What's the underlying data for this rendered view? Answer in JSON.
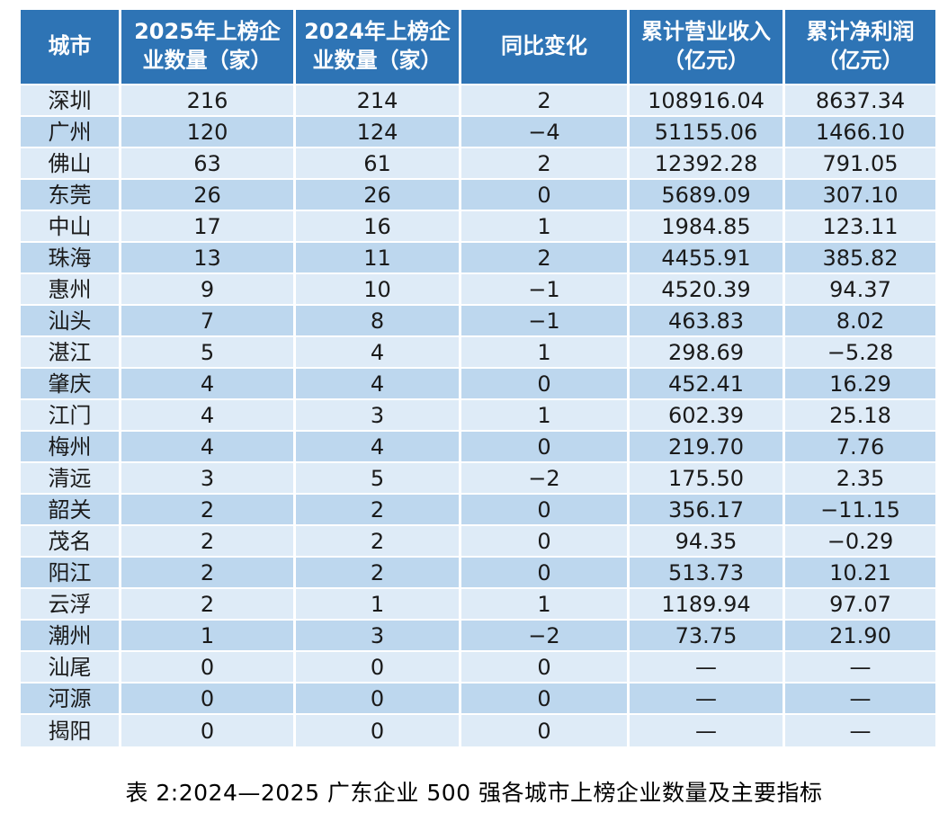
{
  "table": {
    "columns": [
      {
        "label": "城市"
      },
      {
        "label": "2025年上榜企\n业数量（家）"
      },
      {
        "label": "2024年上榜企\n业数量（家）"
      },
      {
        "label": "同比变化"
      },
      {
        "label": "累计营业收入\n（亿元）"
      },
      {
        "label": "累计净利润\n（亿元）"
      }
    ],
    "rows": [
      {
        "cells": [
          "深圳",
          "216",
          "214",
          "2",
          "108916.04",
          "8637.34"
        ]
      },
      {
        "cells": [
          "广州",
          "120",
          "124",
          "−4",
          "51155.06",
          "1466.10"
        ]
      },
      {
        "cells": [
          "佛山",
          "63",
          "61",
          "2",
          "12392.28",
          "791.05"
        ]
      },
      {
        "cells": [
          "东莞",
          "26",
          "26",
          "0",
          "5689.09",
          "307.10"
        ]
      },
      {
        "cells": [
          "中山",
          "17",
          "16",
          "1",
          "1984.85",
          "123.11"
        ]
      },
      {
        "cells": [
          "珠海",
          "13",
          "11",
          "2",
          "4455.91",
          "385.82"
        ]
      },
      {
        "cells": [
          "惠州",
          "9",
          "10",
          "−1",
          "4520.39",
          "94.37"
        ]
      },
      {
        "cells": [
          "汕头",
          "7",
          "8",
          "−1",
          "463.83",
          "8.02"
        ]
      },
      {
        "cells": [
          "湛江",
          "5",
          "4",
          "1",
          "298.69",
          "−5.28"
        ]
      },
      {
        "cells": [
          "肇庆",
          "4",
          "4",
          "0",
          "452.41",
          "16.29"
        ]
      },
      {
        "cells": [
          "江门",
          "4",
          "3",
          "1",
          "602.39",
          "25.18"
        ]
      },
      {
        "cells": [
          "梅州",
          "4",
          "4",
          "0",
          "219.70",
          "7.76"
        ]
      },
      {
        "cells": [
          "清远",
          "3",
          "5",
          "−2",
          "175.50",
          "2.35"
        ]
      },
      {
        "cells": [
          "韶关",
          "2",
          "2",
          "0",
          "356.17",
          "−11.15"
        ]
      },
      {
        "cells": [
          "茂名",
          "2",
          "2",
          "0",
          "94.35",
          "−0.29"
        ]
      },
      {
        "cells": [
          "阳江",
          "2",
          "2",
          "0",
          "513.73",
          "10.21"
        ]
      },
      {
        "cells": [
          "云浮",
          "2",
          "1",
          "1",
          "1189.94",
          "97.07"
        ]
      },
      {
        "cells": [
          "潮州",
          "1",
          "3",
          "−2",
          "73.75",
          "21.90"
        ]
      },
      {
        "cells": [
          "汕尾",
          "0",
          "0",
          "0",
          "—",
          "—"
        ]
      },
      {
        "cells": [
          "河源",
          "0",
          "0",
          "0",
          "—",
          "—"
        ]
      },
      {
        "cells": [
          "揭阳",
          "0",
          "0",
          "0",
          "—",
          "—"
        ]
      }
    ]
  },
  "caption": "表 2:2024—2025 广东企业 500 强各城市上榜企业数量及主要指标",
  "colors": {
    "header_bg": "#2e74b5",
    "header_text": "#ffffff",
    "row_light": "#deebf7",
    "row_dark": "#bdd7ee",
    "body_text": "#1a1a1a",
    "grid_line": "#ffffff",
    "page_bg": "#ffffff"
  },
  "chart_data": {
    "type": "table",
    "title": "表 2:2024—2025 广东企业 500 强各城市上榜企业数量及主要指标",
    "columns": [
      "城市",
      "2025年上榜企业数量（家）",
      "2024年上榜企业数量（家）",
      "同比变化",
      "累计营业收入（亿元）",
      "累计净利润（亿元）"
    ],
    "rows": [
      [
        "深圳",
        216,
        214,
        2,
        108916.04,
        8637.34
      ],
      [
        "广州",
        120,
        124,
        -4,
        51155.06,
        1466.1
      ],
      [
        "佛山",
        63,
        61,
        2,
        12392.28,
        791.05
      ],
      [
        "东莞",
        26,
        26,
        0,
        5689.09,
        307.1
      ],
      [
        "中山",
        17,
        16,
        1,
        1984.85,
        123.11
      ],
      [
        "珠海",
        13,
        11,
        2,
        4455.91,
        385.82
      ],
      [
        "惠州",
        9,
        10,
        -1,
        4520.39,
        94.37
      ],
      [
        "汕头",
        7,
        8,
        -1,
        463.83,
        8.02
      ],
      [
        "湛江",
        5,
        4,
        1,
        298.69,
        -5.28
      ],
      [
        "肇庆",
        4,
        4,
        0,
        452.41,
        16.29
      ],
      [
        "江门",
        4,
        3,
        1,
        602.39,
        25.18
      ],
      [
        "梅州",
        4,
        4,
        0,
        219.7,
        7.76
      ],
      [
        "清远",
        3,
        5,
        -2,
        175.5,
        2.35
      ],
      [
        "韶关",
        2,
        2,
        0,
        356.17,
        -11.15
      ],
      [
        "茂名",
        2,
        2,
        0,
        94.35,
        -0.29
      ],
      [
        "阳江",
        2,
        2,
        0,
        513.73,
        10.21
      ],
      [
        "云浮",
        2,
        1,
        1,
        1189.94,
        97.07
      ],
      [
        "潮州",
        1,
        3,
        -2,
        73.75,
        21.9
      ],
      [
        "汕尾",
        0,
        0,
        0,
        null,
        null
      ],
      [
        "河源",
        0,
        0,
        0,
        null,
        null
      ],
      [
        "揭阳",
        0,
        0,
        0,
        null,
        null
      ]
    ],
    "layout_hints": {
      "header_style": "blue banded header, white bold text",
      "row_style": "alternating light/medium blue bands",
      "alignment": "all cells centered",
      "missing_value_symbol": "—"
    }
  }
}
